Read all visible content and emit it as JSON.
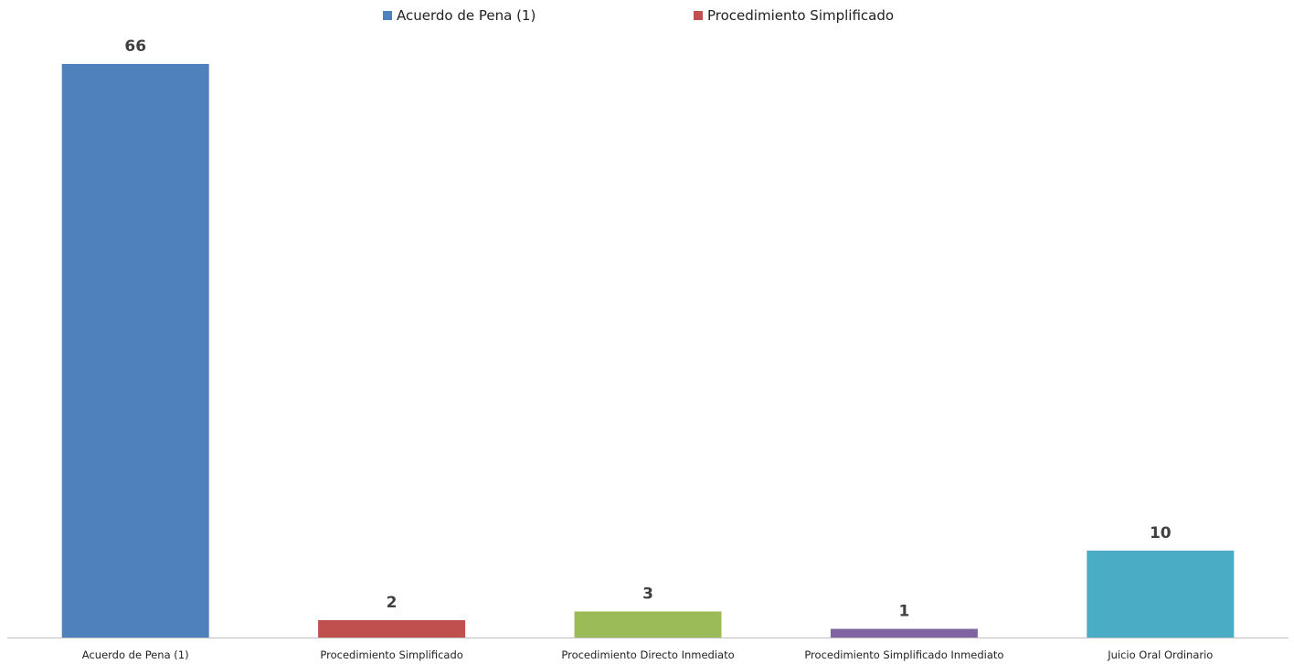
{
  "chart_data": {
    "type": "bar",
    "title": "",
    "xlabel": "",
    "ylabel": "",
    "categories": [
      "Acuerdo de Pena (1)",
      "Procedimiento Simplificado",
      "Procedimiento Directo Inmediato",
      "Procedimiento Simplificado Inmediato",
      "Juicio Oral Ordinario"
    ],
    "values": [
      66,
      2,
      3,
      1,
      10
    ],
    "data_labels": [
      "66",
      "2",
      "3",
      "1",
      "10"
    ],
    "colors": [
      "#4f81bd",
      "#c0504d",
      "#9bbb59",
      "#8064a2",
      "#4bacc6"
    ],
    "ylim": [
      0,
      66
    ],
    "grid": false,
    "legend": {
      "placement": "top-center",
      "entries": [
        {
          "label": "Acuerdo de Pena (1)",
          "color": "#4f81bd"
        },
        {
          "label": "Procedimiento Simplificado",
          "color": "#c0504d"
        }
      ]
    }
  }
}
